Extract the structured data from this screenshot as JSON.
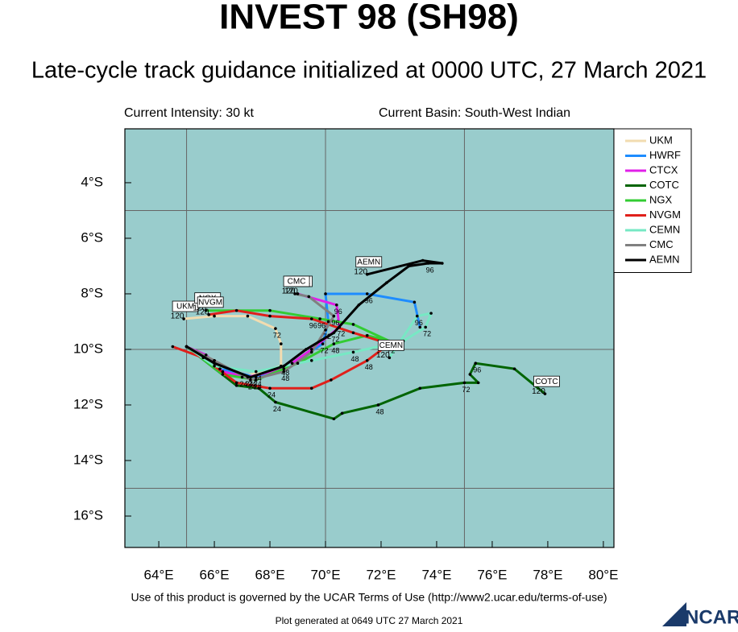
{
  "chart_data": {
    "type": "track",
    "title": "INVEST 98 (SH98)",
    "subtitle": "Late-cycle track guidance initialized at 0000 UTC, 27 March 2021",
    "intensity": "Current Intensity: 30 kt",
    "basin": "Current Basin: South-West Indian",
    "terms": "Use of this product is governed by the UCAR Terms of Use (http://www2.ucar.edu/terms-of-use)",
    "generated": "Plot generated at 0649 UTC  27 March 2021",
    "logo": "NCAR",
    "xlim": [
      62.78,
      80.38
    ],
    "ylim": [
      -17.13,
      -2.06
    ],
    "xticks": [
      {
        "value": 64,
        "label": "64°E"
      },
      {
        "value": 66,
        "label": "66°E"
      },
      {
        "value": 68,
        "label": "68°E"
      },
      {
        "value": 70,
        "label": "70°E"
      },
      {
        "value": 72,
        "label": "72°E"
      },
      {
        "value": 74,
        "label": "74°E"
      },
      {
        "value": 76,
        "label": "76°E"
      },
      {
        "value": 78,
        "label": "78°E"
      },
      {
        "value": 80,
        "label": "80°E"
      }
    ],
    "yticks": [
      {
        "value": -4,
        "label": "4°S"
      },
      {
        "value": -6,
        "label": "6°S"
      },
      {
        "value": -8,
        "label": "8°S"
      },
      {
        "value": -10,
        "label": "10°S"
      },
      {
        "value": -12,
        "label": "12°S"
      },
      {
        "value": -14,
        "label": "14°S"
      },
      {
        "value": -16,
        "label": "16°S"
      }
    ],
    "grid_x": [
      65,
      70,
      75
    ],
    "grid_y": [
      -5,
      -10,
      -15
    ],
    "background": "#99cccc",
    "series": [
      {
        "name": "UKM",
        "color": "#f2dcb0",
        "x": [
          65.0,
          66.0,
          67.0,
          68.4,
          68.4,
          68.2,
          67.2,
          66.0,
          64.9
        ],
        "values": [
          -9.9,
          -10.4,
          -11.0,
          -10.6,
          -9.8,
          -9.25,
          -8.8,
          -8.8,
          -8.9
        ],
        "hours": [
          null,
          null,
          "24",
          null,
          null,
          "72",
          null,
          null,
          "120"
        ]
      },
      {
        "name": "HWRF",
        "color": "#1e8cff",
        "x": [
          65.0,
          66.2,
          67.5,
          68.8,
          69.9,
          70.1,
          70.0,
          71.5,
          73.2,
          73.4
        ],
        "values": [
          -9.9,
          -10.7,
          -11.0,
          -10.5,
          -9.8,
          -9.0,
          -8.0,
          -8.0,
          -8.3,
          -9.2
        ],
        "hours": [
          null,
          null,
          "24",
          null,
          "72",
          null,
          null,
          "96",
          null,
          null
        ]
      },
      {
        "name": "CTCX",
        "color": "#e020e8",
        "x": [
          65.0,
          65.7,
          66.3,
          67.2,
          68.5,
          69.5,
          70.5,
          70.4,
          69.0
        ],
        "values": [
          -9.9,
          -10.2,
          -10.8,
          -11.0,
          -10.7,
          -10.0,
          -9.2,
          -8.4,
          -8.0
        ],
        "hours": [
          null,
          null,
          null,
          "24",
          null,
          null,
          "72",
          "96",
          "120"
        ]
      },
      {
        "name": "COTC",
        "color": "#006400",
        "x": [
          65.0,
          66.8,
          67.6,
          68.2,
          70.3,
          70.6,
          71.9,
          73.4,
          75.0,
          75.5,
          75.2,
          75.4,
          76.8,
          77.9
        ],
        "values": [
          -9.9,
          -11.3,
          -11.4,
          -11.9,
          -12.5,
          -12.3,
          -12.0,
          -11.4,
          -11.2,
          -11.2,
          -10.9,
          -10.5,
          -10.7,
          -11.6
        ],
        "hours": [
          null,
          null,
          null,
          "24",
          null,
          null,
          "48",
          null,
          "72",
          null,
          null,
          "96",
          null,
          "120"
        ]
      },
      {
        "name": "NGX",
        "color": "#33cc33",
        "x": [
          65.0,
          66.3,
          67.5,
          69.0,
          70.3,
          71.5,
          72.3,
          71.0,
          69.8,
          68.0,
          65.7
        ],
        "values": [
          -9.9,
          -10.9,
          -11.1,
          -10.5,
          -9.8,
          -9.5,
          -9.7,
          -9.1,
          -8.9,
          -8.6,
          -8.6
        ],
        "hours": [
          null,
          null,
          "24",
          null,
          "48",
          null,
          "72",
          null,
          "96",
          null,
          "120"
        ]
      },
      {
        "name": "NVGM",
        "color": "#e0201b",
        "x": [
          64.5,
          65.6,
          66.8,
          68.0,
          69.5,
          70.2,
          71.5,
          72.3,
          71.0,
          69.5,
          68.0,
          66.8,
          65.8
        ],
        "values": [
          -9.9,
          -10.3,
          -11.2,
          -11.4,
          -11.4,
          -11.1,
          -10.4,
          -9.8,
          -9.4,
          -8.9,
          -8.8,
          -8.6,
          -8.75
        ],
        "hours": [
          null,
          null,
          null,
          "24",
          null,
          null,
          "48",
          "72",
          null,
          "96",
          null,
          null,
          "120"
        ]
      },
      {
        "name": "CEMN",
        "color": "#77e8c4",
        "x": [
          65.0,
          66.0,
          67.5,
          69.5,
          71.0,
          72.8,
          73.6,
          73.8,
          73.3,
          72.3
        ],
        "values": [
          -9.9,
          -10.6,
          -10.8,
          -10.4,
          -10.1,
          -9.7,
          -9.2,
          -8.7,
          -8.8,
          -10.3
        ],
        "hours": [
          null,
          null,
          "24",
          null,
          "48",
          null,
          "72",
          null,
          "96",
          "120"
        ]
      },
      {
        "name": "CMC",
        "color": "#808080",
        "x": [
          65.0,
          66.0,
          67.3,
          68.5,
          69.5,
          70.0,
          70.3,
          69.4,
          68.9
        ],
        "values": [
          -9.9,
          -10.4,
          -11.1,
          -10.8,
          -10.1,
          -9.3,
          -8.8,
          -8.1,
          -8.0
        ],
        "hours": [
          null,
          null,
          "24",
          "48",
          null,
          "72",
          "96",
          null,
          "120"
        ]
      },
      {
        "name": "AEMN",
        "color": "#000000",
        "x": [
          65.0,
          66.0,
          67.3,
          68.5,
          69.3,
          70.3,
          71.2,
          72.2,
          73.0,
          73.7,
          74.2,
          73.5,
          71.5
        ],
        "values": [
          -9.9,
          -10.5,
          -11.0,
          -10.6,
          -10.0,
          -9.4,
          -8.4,
          -7.6,
          -7.0,
          -6.9,
          -6.9,
          -6.8,
          -7.3
        ],
        "hours": [
          null,
          null,
          "24",
          "48",
          null,
          "72",
          null,
          null,
          null,
          "96",
          null,
          null,
          "120"
        ]
      }
    ]
  }
}
